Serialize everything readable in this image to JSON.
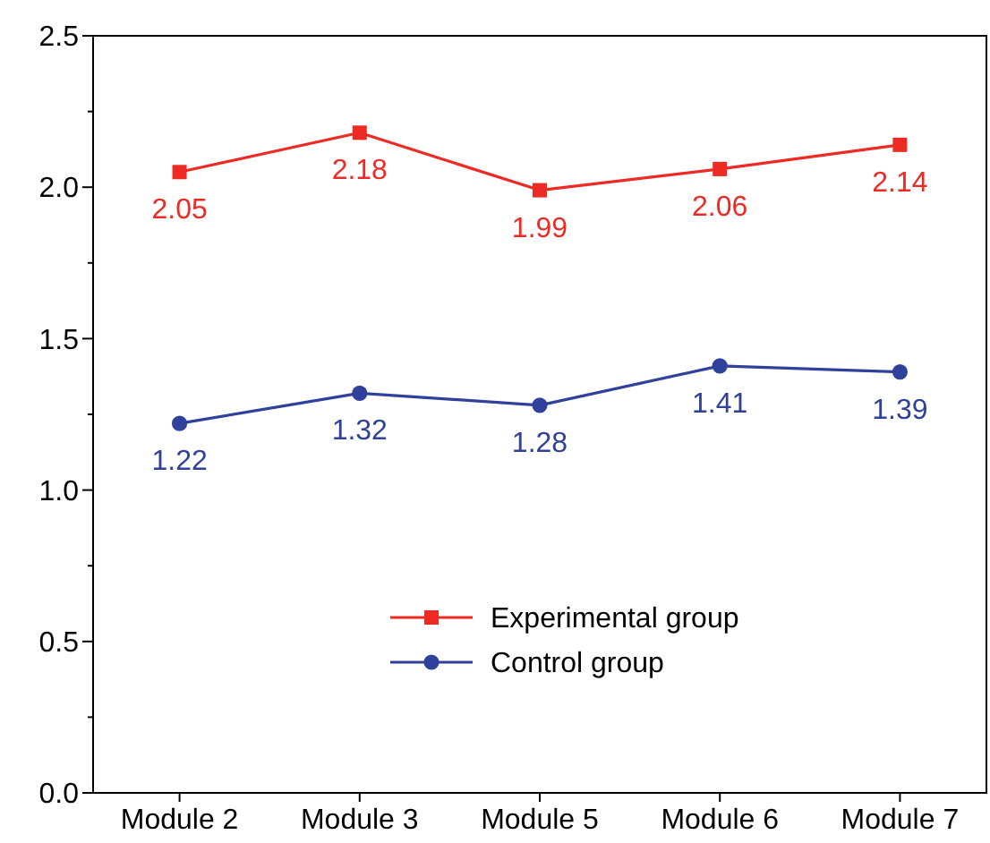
{
  "chart_data": {
    "type": "line",
    "categories": [
      "Module 2",
      "Module 3",
      "Module 5",
      "Module 6",
      "Module 7"
    ],
    "series": [
      {
        "name": "Experimental group",
        "color": "#ee2a24",
        "values": [
          2.05,
          2.18,
          1.99,
          2.06,
          2.14
        ],
        "marker": "square"
      },
      {
        "name": "Control group",
        "color": "#2f419b",
        "values": [
          1.22,
          1.32,
          1.28,
          1.41,
          1.39
        ],
        "marker": "circle"
      }
    ],
    "ylim": [
      0,
      2.5
    ],
    "yticks": [
      {
        "value": 0,
        "label": "0.0"
      },
      {
        "value": 0.25,
        "label": null
      },
      {
        "value": 0.5,
        "label": "0.5"
      },
      {
        "value": 0.75,
        "label": null
      },
      {
        "value": 1,
        "label": "1.0"
      },
      {
        "value": 1.25,
        "label": null
      },
      {
        "value": 1.5,
        "label": "1.5"
      },
      {
        "value": 1.75,
        "label": null
      },
      {
        "value": 2,
        "label": "2.0"
      },
      {
        "value": 2.25,
        "label": null
      },
      {
        "value": 2.5,
        "label": "2.5"
      }
    ],
    "data_labels": true,
    "legend": "bottom",
    "grid": false,
    "line_style": "solid"
  }
}
